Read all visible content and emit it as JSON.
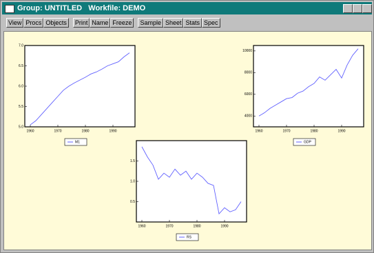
{
  "window": {
    "title": "Group: UNTITLED   Workfile: DEMO",
    "toolbar": [
      [
        "View",
        "Procs",
        "Objects"
      ],
      [
        "Print",
        "Name",
        "Freeze"
      ],
      [
        "Sample",
        "Sheet",
        "Stats",
        "Spec"
      ]
    ]
  },
  "charts": [
    {
      "type": "line",
      "xlim": [
        1958,
        1998
      ],
      "xticks": [
        1960,
        1970,
        1980,
        1990
      ],
      "ylim": [
        5,
        7
      ],
      "yticks": [
        {
          "value": 5,
          "label": "5.0"
        },
        {
          "value": 5.5,
          "label": "5.5"
        },
        {
          "value": 6,
          "label": "6.0"
        },
        {
          "value": 6.5,
          "label": "6.5"
        },
        {
          "value": 7,
          "label": "7.0"
        }
      ],
      "x": [
        1960,
        1962,
        1964,
        1966,
        1968,
        1970,
        1972,
        1974,
        1976,
        1978,
        1980,
        1982,
        1984,
        1986,
        1988,
        1990,
        1992,
        1994,
        1996
      ],
      "series": [
        {
          "name": "M1",
          "color": "#6060ff",
          "values": [
            5.05,
            5.15,
            5.3,
            5.45,
            5.6,
            5.75,
            5.9,
            6.0,
            6.08,
            6.15,
            6.22,
            6.3,
            6.35,
            6.42,
            6.5,
            6.55,
            6.6,
            6.72,
            6.82
          ]
        }
      ]
    },
    {
      "type": "line",
      "xlim": [
        1958,
        1998
      ],
      "xticks": [
        1960,
        1970,
        1980,
        1990
      ],
      "ylim": [
        3000,
        10500
      ],
      "yticks": [
        4000,
        6000,
        8000,
        10000
      ],
      "x": [
        1960,
        1962,
        1964,
        1966,
        1968,
        1970,
        1972,
        1974,
        1976,
        1978,
        1980,
        1982,
        1984,
        1986,
        1988,
        1990,
        1992,
        1994,
        1996
      ],
      "series": [
        {
          "name": "GDP",
          "color": "#6060ff",
          "values": [
            4000,
            4300,
            4700,
            5000,
            5300,
            5600,
            5700,
            6100,
            6300,
            6700,
            7000,
            7600,
            7300,
            7800,
            8300,
            7500,
            8700,
            9600,
            10200
          ]
        }
      ]
    },
    {
      "type": "line",
      "xlim": [
        1958,
        1998
      ],
      "xticks": [
        1960,
        1970,
        1980,
        1990
      ],
      "ylim": [
        0,
        2
      ],
      "yticks": [
        {
          "value": 0.5,
          "label": "0.5"
        },
        {
          "value": 1,
          "label": "1.0"
        },
        {
          "value": 1.5,
          "label": "1.5"
        }
      ],
      "x": [
        1960,
        1962,
        1964,
        1966,
        1968,
        1970,
        1972,
        1974,
        1976,
        1978,
        1980,
        1982,
        1984,
        1986,
        1988,
        1990,
        1992,
        1994,
        1996
      ],
      "series": [
        {
          "name": "RS",
          "color": "#6060ff",
          "values": [
            1.85,
            1.6,
            1.4,
            1.05,
            1.2,
            1.1,
            1.3,
            1.15,
            1.25,
            1.05,
            1.2,
            1.1,
            0.95,
            0.9,
            0.2,
            0.35,
            0.25,
            0.3,
            0.5
          ]
        }
      ]
    }
  ]
}
